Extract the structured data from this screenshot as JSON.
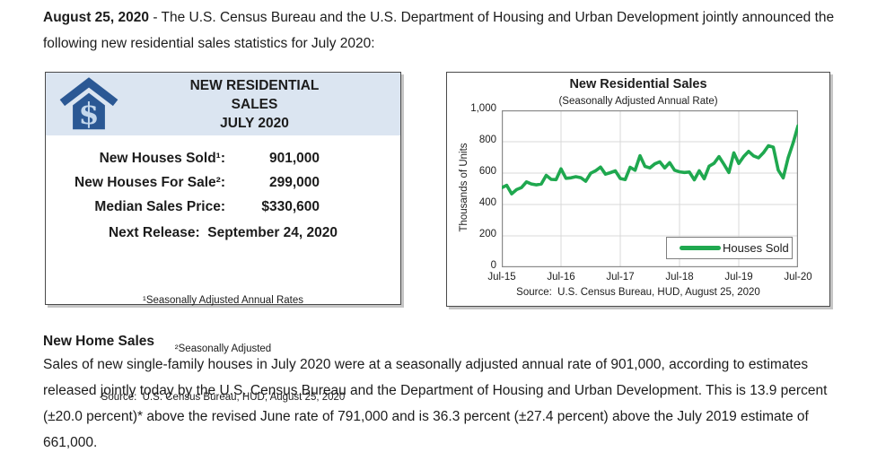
{
  "page": {
    "intro_bold": "August 25, 2020",
    "intro_text": " - The U.S. Census Bureau and the U.S. Department of Housing and Urban Development jointly announced the following new residential sales statistics for July 2020:"
  },
  "info_box": {
    "icon": "house-dollar-icon",
    "title_line1": "NEW RESIDENTIAL",
    "title_line2": "SALES",
    "title_line3": "JULY 2020",
    "stats": [
      {
        "label": "New Houses Sold¹:",
        "value": "901,000"
      },
      {
        "label": "New Houses For Sale²:",
        "value": "299,000"
      },
      {
        "label": "Median Sales Price:",
        "value": "$330,600"
      }
    ],
    "next_release": "Next Release:  September 24, 2020",
    "footnotes": [
      "¹Seasonally Adjusted Annual Rates",
      "²Seasonally Adjusted",
      "Source:  U.S. Census Bureau, HUD, August 25, 2020"
    ]
  },
  "chart_data": {
    "type": "line",
    "title": "New Residential Sales",
    "subtitle": "(Seasonally Adjusted Annual Rate)",
    "ylabel": "Thousands of Units",
    "xlabel": "",
    "ylim": [
      0,
      1000
    ],
    "yticks": [
      "0",
      "200",
      "400",
      "600",
      "800",
      "1,000"
    ],
    "xticks": [
      "Jul-15",
      "Jul-16",
      "Jul-17",
      "Jul-18",
      "Jul-19",
      "Jul-20"
    ],
    "grid": true,
    "legend": "Houses Sold",
    "legend_position": "bottom-right",
    "line_color": "#1FA84F",
    "source": "Source:  U.S. Census Bureau, HUD, August 25, 2020",
    "series": [
      {
        "name": "Houses Sold",
        "x_start": "Jul-15",
        "x_end": "Jul-20",
        "frequency": "monthly",
        "values": [
          507,
          522,
          468,
          495,
          508,
          544,
          531,
          525,
          531,
          586,
          560,
          558,
          627,
          567,
          570,
          577,
          571,
          548,
          599,
          615,
          638,
          593,
          603,
          614,
          566,
          559,
          637,
          618,
          711,
          643,
          633,
          659,
          672,
          633,
          666,
          618,
          608,
          604,
          607,
          557,
          615,
          564,
          644,
          662,
          705,
          656,
          604,
          729,
          661,
          706,
          738,
          710,
          697,
          730,
          774,
          765,
          619,
          570,
          697,
          791,
          901
        ]
      }
    ]
  },
  "body": {
    "heading": "New Home Sales",
    "paragraph": "Sales of new single-family houses in July 2020 were at a seasonally adjusted annual rate of 901,000, according to estimates released jointly today by the U.S. Census Bureau and the Department of Housing and Urban Development. This is 13.9 percent (±20.0 percent)* above the revised June rate of 791,000 and is 36.3 percent (±27.4 percent) above the July 2019 estimate of 661,000."
  },
  "colors": {
    "line_green": "#1FA84F",
    "header_blue": "#DBE5F1",
    "house_blue": "#2B5894",
    "house_symbol": "#C3D7EC",
    "gridline": "#D9D9D9",
    "plot_border": "#8A8A8A"
  }
}
